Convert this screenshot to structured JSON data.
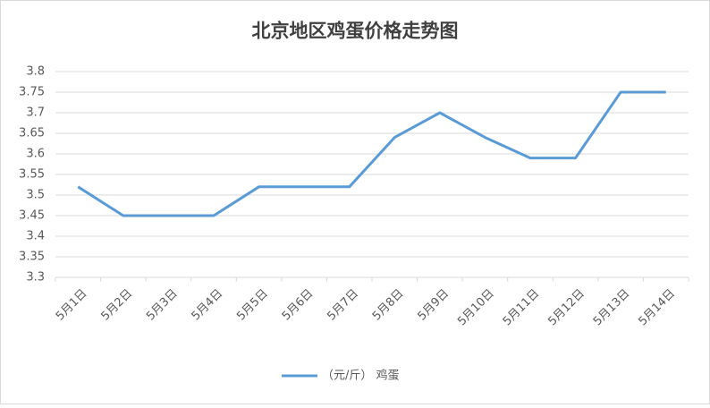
{
  "chart_data": {
    "type": "line",
    "title": "北京地区鸡蛋价格走势图",
    "categories": [
      "5月1日",
      "5月2日",
      "5月3日",
      "5月4日",
      "5月5日",
      "5月6日",
      "5月7日",
      "5月8日",
      "5月9日",
      "5月10日",
      "5月11日",
      "5月12日",
      "5月13日",
      "5月14日"
    ],
    "series": [
      {
        "name": "（元/斤） 鸡蛋",
        "color": "#5b9bd5",
        "values": [
          3.52,
          3.45,
          3.45,
          3.45,
          3.52,
          3.52,
          3.52,
          3.64,
          3.7,
          3.64,
          3.59,
          3.59,
          3.75,
          3.75
        ]
      }
    ],
    "ylim": [
      3.3,
      3.8
    ],
    "yticks": [
      3.3,
      3.35,
      3.4,
      3.45,
      3.5,
      3.55,
      3.6,
      3.65,
      3.7,
      3.75,
      3.8
    ],
    "grid": true,
    "legend": "bottom"
  }
}
